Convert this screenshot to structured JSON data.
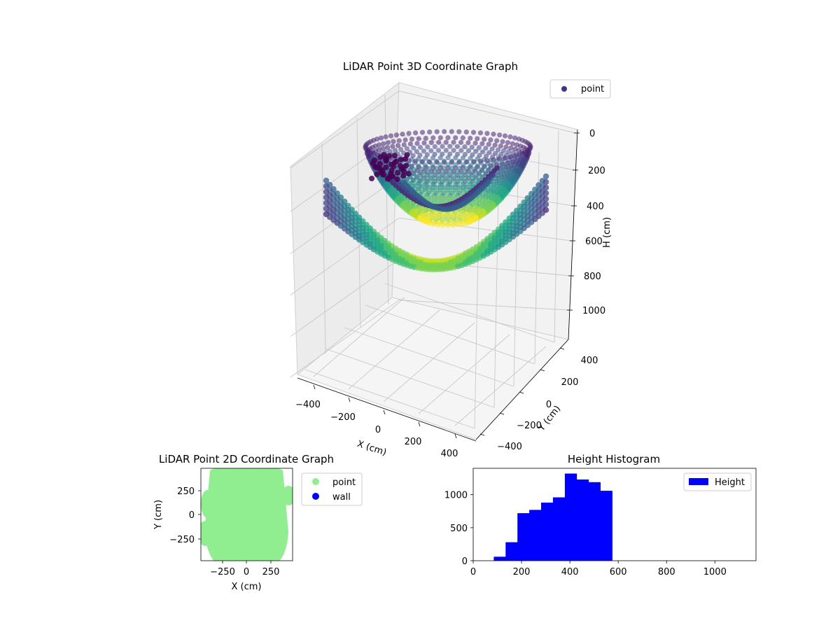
{
  "chart_data": [
    {
      "type": "scatter3d",
      "title": "LiDAR Point 3D Coordinate Graph",
      "xlabel": "X (cm)",
      "ylabel": "Y (cm)",
      "zlabel": "H (cm)",
      "xticks": [
        "−400",
        "−200",
        "0",
        "200",
        "400"
      ],
      "yticks": [
        "−400",
        "−200",
        "0",
        "200",
        "400"
      ],
      "zticks": [
        "0",
        "200",
        "400",
        "600",
        "800",
        "1000"
      ],
      "xlim": [
        -500,
        500
      ],
      "ylim": [
        -500,
        500
      ],
      "zlim": [
        0,
        1100
      ],
      "z_inverted": true,
      "colormap": "viridis",
      "legend": [
        "point"
      ],
      "legend_placement": "top-right",
      "grid": true
    },
    {
      "type": "scatter",
      "title": "LiDAR Point 2D Coordinate Graph",
      "xlabel": "X (cm)",
      "ylabel": "Y (cm)",
      "xticks": [
        "−250",
        "0",
        "250"
      ],
      "yticks": [
        "250",
        "0",
        "−250"
      ],
      "xlim": [
        -480,
        480
      ],
      "ylim": [
        -480,
        480
      ],
      "series": [
        {
          "name": "point",
          "color": "#90ee90"
        },
        {
          "name": "wall",
          "color": "#0000ff"
        }
      ],
      "legend_placement": "outside-right"
    },
    {
      "type": "histogram",
      "title": "Height Histogram",
      "xticks": [
        "0",
        "200",
        "400",
        "600",
        "800",
        "1000"
      ],
      "yticks": [
        "0",
        "500",
        "1000"
      ],
      "xlim": [
        0,
        1170
      ],
      "ylim": [
        0,
        1400
      ],
      "bin_edges": [
        85,
        134,
        183,
        232,
        281,
        330,
        379,
        428,
        477,
        526,
        575
      ],
      "counts": [
        60,
        280,
        720,
        770,
        880,
        960,
        1320,
        1230,
        1190,
        1060
      ],
      "color": "#0000ff",
      "legend": [
        "Height"
      ],
      "legend_placement": "top-right"
    }
  ]
}
